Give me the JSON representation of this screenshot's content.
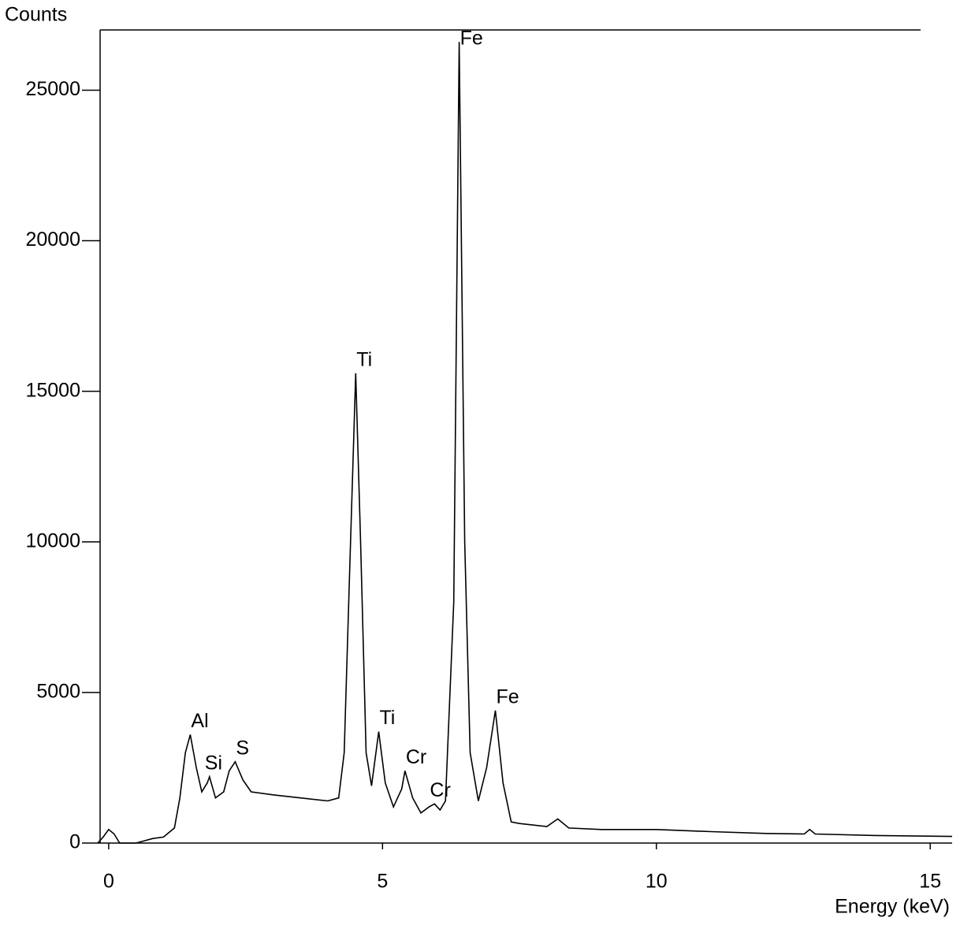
{
  "chart_data": {
    "type": "line",
    "y_label": "Counts",
    "x_label": "Energy (keV)",
    "xlim": [
      -0.2,
      15.4
    ],
    "ylim": [
      0,
      27000
    ],
    "xticks": [
      0,
      5,
      10,
      15
    ],
    "yticks": [
      0,
      5000,
      10000,
      15000,
      20000,
      25000
    ],
    "series": [
      {
        "color": "#000000",
        "x": [
          -0.2,
          -0.1,
          0.0,
          0.1,
          0.2,
          0.5,
          0.8,
          1.0,
          1.2,
          1.3,
          1.4,
          1.49,
          1.6,
          1.7,
          1.8,
          1.84,
          1.95,
          2.1,
          2.2,
          2.31,
          2.45,
          2.6,
          3.0,
          3.5,
          4.0,
          4.2,
          4.3,
          4.4,
          4.51,
          4.6,
          4.7,
          4.8,
          4.93,
          5.05,
          5.2,
          5.35,
          5.41,
          5.55,
          5.7,
          5.85,
          5.95,
          6.05,
          6.15,
          6.3,
          6.4,
          6.5,
          6.6,
          6.75,
          6.9,
          7.06,
          7.2,
          7.35,
          7.5,
          8.0,
          8.2,
          8.4,
          9.0,
          10.0,
          11.0,
          12.0,
          12.7,
          12.8,
          12.9,
          14.0,
          15.4
        ],
        "values": [
          0,
          200,
          450,
          300,
          0,
          0,
          150,
          200,
          500,
          1500,
          3000,
          3600,
          2500,
          1700,
          2000,
          2200,
          1500,
          1700,
          2400,
          2700,
          2100,
          1700,
          1600,
          1500,
          1400,
          1500,
          3000,
          9000,
          15600,
          10000,
          3000,
          1900,
          3700,
          2000,
          1200,
          1800,
          2400,
          1500,
          1000,
          1200,
          1300,
          1100,
          1400,
          8000,
          26600,
          10000,
          3000,
          1400,
          2500,
          4400,
          2000,
          700,
          650,
          550,
          800,
          500,
          450,
          450,
          380,
          320,
          300,
          450,
          300,
          250,
          220
        ]
      }
    ],
    "annotations": [
      {
        "text": "Al",
        "x": 1.49,
        "y": 3600
      },
      {
        "text": "Si",
        "x": 1.74,
        "y": 2200
      },
      {
        "text": "S",
        "x": 2.31,
        "y": 2700
      },
      {
        "text": "Ti",
        "x": 4.51,
        "y": 15600
      },
      {
        "text": "Ti",
        "x": 4.93,
        "y": 3700
      },
      {
        "text": "Cr",
        "x": 5.41,
        "y": 2400
      },
      {
        "text": "Cr",
        "x": 5.85,
        "y": 1300
      },
      {
        "text": "Fe",
        "x": 6.4,
        "y": 26600
      },
      {
        "text": "Fe",
        "x": 7.06,
        "y": 4400
      }
    ]
  }
}
